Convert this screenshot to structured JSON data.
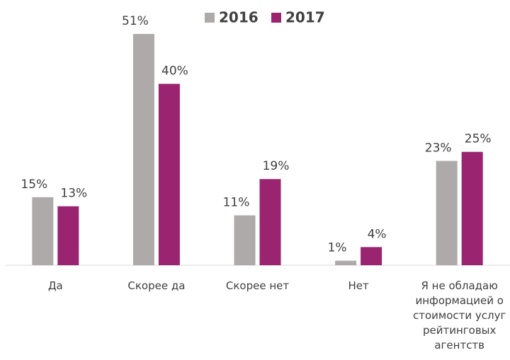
{
  "chart_data": {
    "type": "bar",
    "categories": [
      "Да",
      "Скорее да",
      "Скорее нет",
      "Нет",
      "Я не обладаю информацией о стоимости услуг рейтинговых агентств"
    ],
    "series": [
      {
        "name": "2016",
        "color": "#aeaaaa",
        "values": [
          15,
          51,
          11,
          1,
          23
        ],
        "value_labels": [
          "15%",
          "51%",
          "11%",
          "1%",
          "23%"
        ]
      },
      {
        "name": "2017",
        "color": "#9b2470",
        "values": [
          13,
          40,
          19,
          4,
          25
        ],
        "value_labels": [
          "13%",
          "40%",
          "19%",
          "4%",
          "25%"
        ]
      }
    ],
    "legend": "top"
  }
}
